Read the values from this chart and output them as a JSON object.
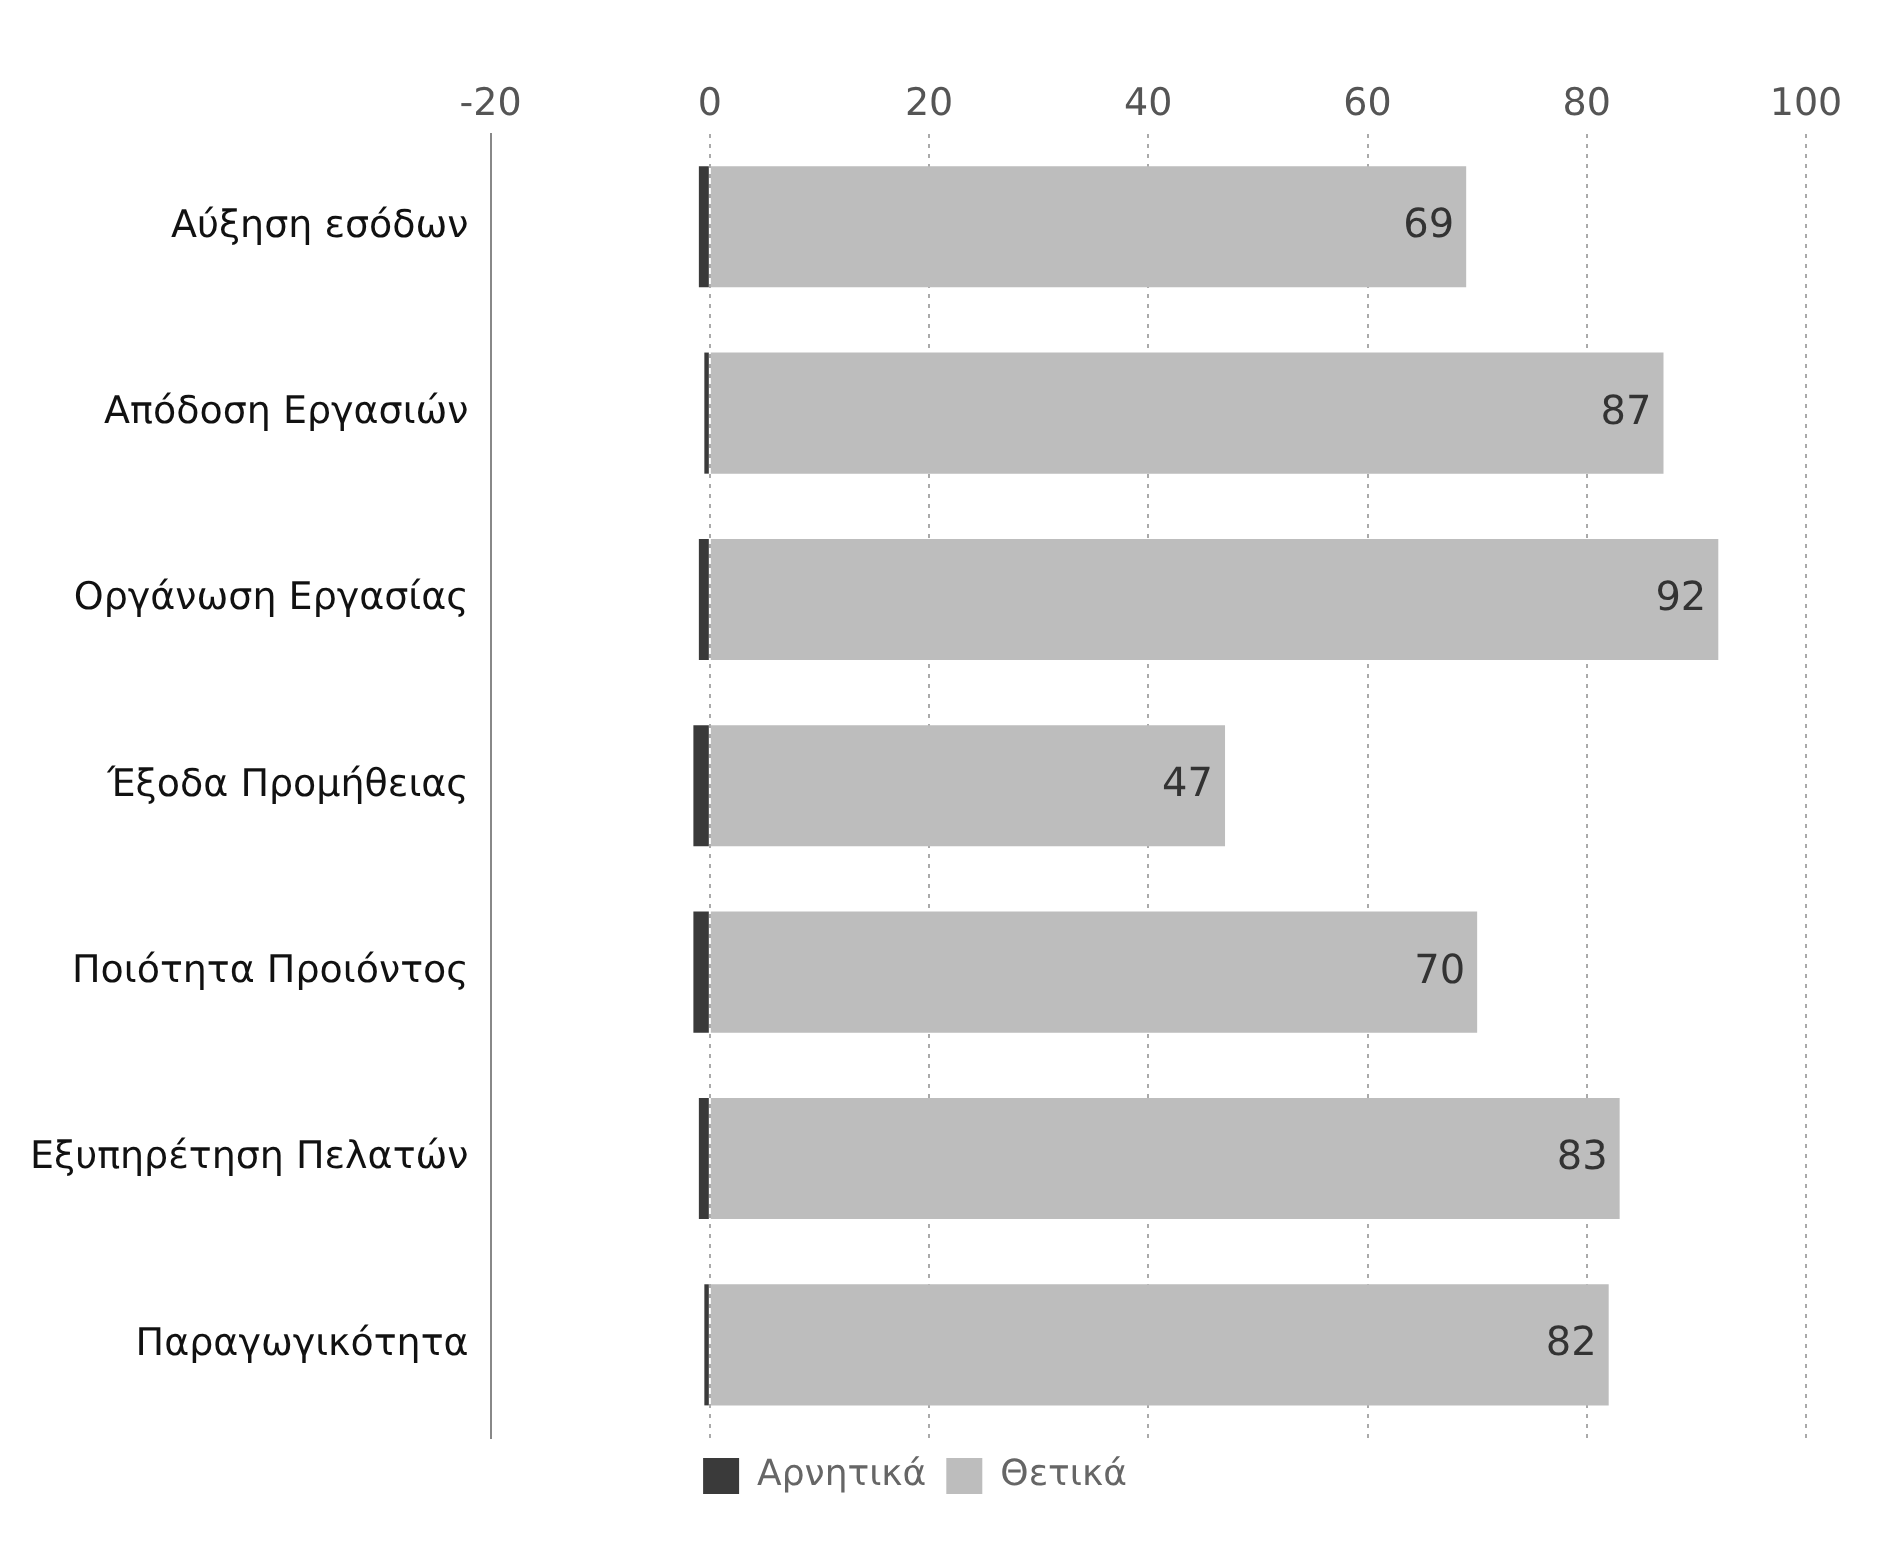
{
  "chart_data": {
    "type": "bar",
    "orientation": "horizontal",
    "stacked": true,
    "categories": [
      "Αύξηση εσόδων",
      "Απόδοση Εργασιών",
      "Οργάνωση Εργασίας",
      "Έξοδα Προμήθειας",
      "Ποιότητα Προιόντος",
      "Εξυπηρέτηση Πελατών",
      "Παραγωγικότητα"
    ],
    "series": [
      {
        "name": "Αρνητικά",
        "color": "#3a3a3a",
        "values": [
          -1,
          -0.5,
          -1,
          -1.5,
          -1.5,
          -1,
          -0.5
        ]
      },
      {
        "name": "Θετικά",
        "color": "#bdbdbd",
        "values": [
          69,
          87,
          92,
          47,
          70,
          83,
          82
        ],
        "value_labels": [
          "69",
          "87",
          "92",
          "47",
          "70",
          "83",
          "82"
        ]
      }
    ],
    "xlim": [
      -20,
      100
    ],
    "xticks": [
      -20,
      0,
      20,
      40,
      60,
      80,
      100
    ],
    "grid": "x",
    "legend": "bottom"
  }
}
